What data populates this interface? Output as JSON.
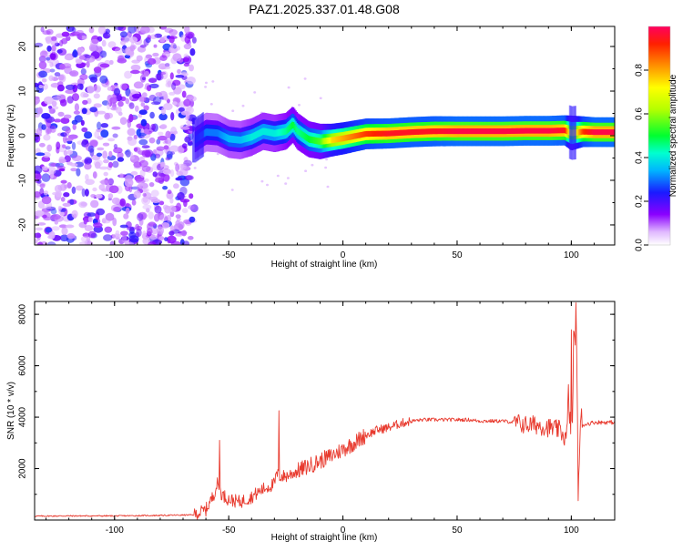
{
  "figure": {
    "title": "PAZ1.2025.337.01.48.G08"
  },
  "chart_data": [
    {
      "type": "heatmap",
      "name": "spectrogram",
      "title": "PAZ1.2025.337.01.48.G08",
      "xlabel": "Height of straight line (km)",
      "ylabel": "Frequency (Hz)",
      "xlim": [
        -135,
        119
      ],
      "ylim": [
        -24.5,
        24.5
      ],
      "x_ticks": [
        -100,
        -50,
        0,
        50,
        100
      ],
      "y_ticks": [
        -20,
        -10,
        0,
        10,
        20
      ],
      "x_tick_labels": [
        "-100",
        "-50",
        "0",
        "50",
        "100"
      ],
      "y_tick_labels": [
        "-20",
        "-10",
        "0",
        "10",
        "20"
      ],
      "noise_region_x": [
        -135,
        -65
      ],
      "signal_track": {
        "x": [
          -65,
          -60,
          -55,
          -50,
          -45,
          -40,
          -35,
          -30,
          -25,
          -22,
          -20,
          -15,
          -10,
          -5,
          0,
          10,
          20,
          30,
          40,
          50,
          60,
          70,
          80,
          90,
          97,
          100,
          105,
          110,
          119
        ],
        "freq": [
          -1.0,
          0.8,
          0.6,
          -0.7,
          -1.0,
          -0.3,
          1.0,
          0.5,
          1.0,
          2.5,
          1.0,
          -0.8,
          -1.3,
          -1.0,
          -0.6,
          0.4,
          0.5,
          0.8,
          1.0,
          1.0,
          1.0,
          1.0,
          1.1,
          1.1,
          1.2,
          0.6,
          0.9,
          0.8,
          0.8
        ],
        "amplitude": [
          0.25,
          0.3,
          0.3,
          0.35,
          0.35,
          0.4,
          0.4,
          0.4,
          0.45,
          0.5,
          0.45,
          0.5,
          0.55,
          0.75,
          0.8,
          0.9,
          0.95,
          0.95,
          0.95,
          0.98,
          0.98,
          0.98,
          0.98,
          0.98,
          0.95,
          0.6,
          0.9,
          0.98,
          0.98
        ]
      },
      "colorbar": {
        "label": "Normalized spectral amplitude",
        "range": [
          0.0,
          1.0
        ],
        "ticks": [
          0.0,
          0.2,
          0.4,
          0.6,
          0.8
        ],
        "tick_labels": [
          "0.0",
          "0.2",
          "0.4",
          "0.6",
          "0.8"
        ],
        "colormap": "rainbow"
      }
    },
    {
      "type": "line",
      "name": "snr",
      "xlabel": "Height of straight line (km)",
      "ylabel": "SNR (10 * v/v)",
      "xlim": [
        -135,
        119
      ],
      "ylim": [
        0,
        8500
      ],
      "x_ticks": [
        -100,
        -50,
        0,
        50,
        100
      ],
      "y_ticks": [
        2000,
        4000,
        6000,
        8000
      ],
      "x_tick_labels": [
        "-100",
        "-50",
        "0",
        "50",
        "100"
      ],
      "y_tick_labels": [
        "2000",
        "4000",
        "6000",
        "8000"
      ],
      "series": [
        {
          "name": "SNR",
          "color": "#e83a2e",
          "x": [
            -135,
            -120,
            -100,
            -80,
            -65,
            -60,
            -57,
            -55,
            -53,
            -50,
            -45,
            -40,
            -35,
            -30,
            -29,
            -28,
            -25,
            -20,
            -15,
            -10,
            -5,
            0,
            5,
            10,
            15,
            20,
            25,
            30,
            35,
            40,
            45,
            50,
            55,
            60,
            65,
            70,
            75,
            80,
            85,
            90,
            95,
            98,
            99,
            100,
            101,
            102,
            103,
            104,
            105,
            110,
            115,
            119
          ],
          "y": [
            150,
            160,
            160,
            180,
            200,
            400,
            900,
            1400,
            1000,
            800,
            700,
            900,
            1200,
            1400,
            1800,
            1700,
            1700,
            1900,
            2100,
            2300,
            2500,
            2750,
            3000,
            3300,
            3500,
            3600,
            3750,
            3850,
            3900,
            3900,
            3900,
            3900,
            3900,
            3850,
            3850,
            3850,
            3800,
            3700,
            3700,
            3600,
            3500,
            3100,
            5000,
            2200,
            6500,
            8100,
            1500,
            3500,
            3700,
            3800,
            3800,
            3800
          ]
        }
      ],
      "spikes": [
        {
          "x": -54,
          "y": 3100
        },
        {
          "x": -28,
          "y": 4250
        },
        {
          "x": 100,
          "y": 7400
        },
        {
          "x": 102,
          "y": 8450
        }
      ]
    }
  ]
}
